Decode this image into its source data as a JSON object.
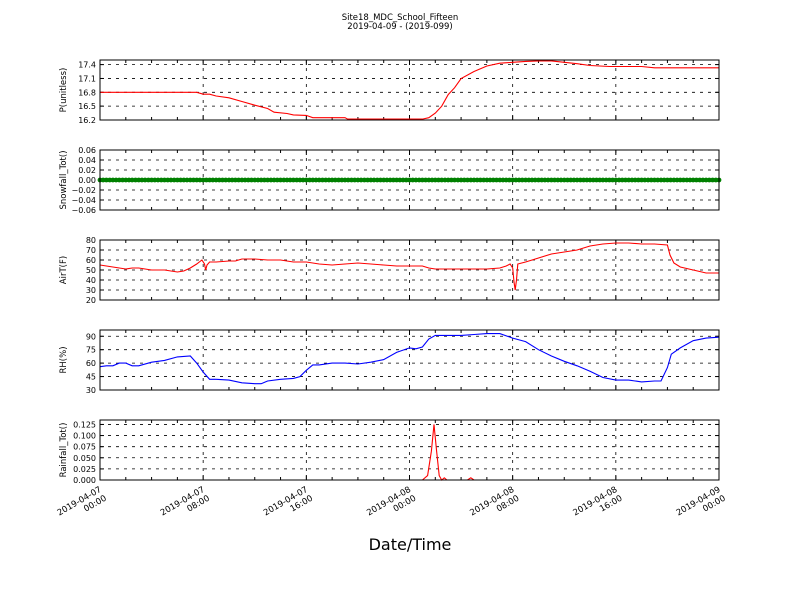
{
  "figure": {
    "title": "Site18_MDC_School_Fifteen",
    "subtitle": "2019-04-09 - (2019-099)",
    "xlabel": "Date/Time",
    "x_ticks": [
      {
        "t": 0,
        "line1": "2019-04-07",
        "line2": "00:00"
      },
      {
        "t": 8,
        "line1": "2019-04-07",
        "line2": "08:00"
      },
      {
        "t": 16,
        "line1": "2019-04-07",
        "line2": "16:00"
      },
      {
        "t": 24,
        "line1": "2019-04-08",
        "line2": "00:00"
      },
      {
        "t": 32,
        "line1": "2019-04-08",
        "line2": "08:00"
      },
      {
        "t": 40,
        "line1": "2019-04-08",
        "line2": "16:00"
      },
      {
        "t": 48,
        "line1": "2019-04-09",
        "line2": "00:00"
      }
    ]
  },
  "chart_data": [
    {
      "type": "line",
      "ylabel": "P(unitless)",
      "ylim": [
        16.2,
        17.5
      ],
      "yticks": [
        16.2,
        16.5,
        16.8,
        17.1,
        17.4
      ],
      "tick_labels": [
        "16.2",
        "16.5",
        "16.8",
        "17.1",
        "17.4"
      ],
      "grid": true,
      "color": "#ff0000",
      "x_start": "2019-04-07 00:00",
      "x_end": "2019-04-09 00:00",
      "points": [
        [
          0,
          16.8
        ],
        [
          7.5,
          16.8
        ],
        [
          8,
          16.76
        ],
        [
          8.5,
          16.76
        ],
        [
          9,
          16.72
        ],
        [
          10,
          16.68
        ],
        [
          11,
          16.6
        ],
        [
          12,
          16.52
        ],
        [
          13,
          16.45
        ],
        [
          13.5,
          16.37
        ],
        [
          14.5,
          16.34
        ],
        [
          15,
          16.31
        ],
        [
          16,
          16.3
        ],
        [
          16.5,
          16.25
        ],
        [
          19,
          16.25
        ],
        [
          19.2,
          16.22
        ],
        [
          25,
          16.22
        ],
        [
          25.5,
          16.25
        ],
        [
          26,
          16.35
        ],
        [
          26.5,
          16.5
        ],
        [
          27,
          16.75
        ],
        [
          27.5,
          16.9
        ],
        [
          28,
          17.1
        ],
        [
          29,
          17.25
        ],
        [
          30,
          17.37
        ],
        [
          31,
          17.43
        ],
        [
          32,
          17.45
        ],
        [
          33,
          17.47
        ],
        [
          34,
          17.48
        ],
        [
          35,
          17.48
        ],
        [
          36,
          17.45
        ],
        [
          37,
          17.42
        ],
        [
          38,
          17.38
        ],
        [
          39.5,
          17.36
        ],
        [
          40,
          17.36
        ],
        [
          42,
          17.36
        ],
        [
          43,
          17.33
        ],
        [
          48,
          17.33
        ]
      ]
    },
    {
      "type": "scatter",
      "ylabel": "Snowfall_Tot()",
      "ylim": [
        -0.06,
        0.06
      ],
      "yticks": [
        -0.06,
        -0.04,
        -0.02,
        0.0,
        0.02,
        0.04,
        0.06
      ],
      "tick_labels": [
        "−0.06",
        "−0.04",
        "−0.02",
        "0.00",
        "0.02",
        "0.04",
        "0.06"
      ],
      "grid": true,
      "color": "#008000",
      "x_start": "2019-04-07 00:00",
      "x_end": "2019-04-09 00:00",
      "constant_value": 0.0,
      "interval_hours": 0.25
    },
    {
      "type": "line",
      "ylabel": "AirT(F)",
      "ylim": [
        20,
        80
      ],
      "yticks": [
        20,
        30,
        40,
        50,
        60,
        70,
        80
      ],
      "tick_labels": [
        "20",
        "30",
        "40",
        "50",
        "60",
        "70",
        "80"
      ],
      "grid": true,
      "color": "#ff0000",
      "x_start": "2019-04-07 00:00",
      "x_end": "2019-04-09 00:00",
      "points": [
        [
          0,
          55
        ],
        [
          1,
          53
        ],
        [
          2,
          51
        ],
        [
          2.5,
          52
        ],
        [
          3,
          52
        ],
        [
          3.5,
          51
        ],
        [
          4,
          50
        ],
        [
          5,
          50
        ],
        [
          6,
          48
        ],
        [
          6.5,
          49
        ],
        [
          7,
          52
        ],
        [
          7.5,
          56
        ],
        [
          7.9,
          60
        ],
        [
          8.1,
          56
        ],
        [
          8.2,
          50
        ],
        [
          8.3,
          55
        ],
        [
          8.5,
          58
        ],
        [
          9,
          58
        ],
        [
          10,
          59
        ],
        [
          10.5,
          59
        ],
        [
          11,
          61
        ],
        [
          12,
          61
        ],
        [
          13,
          60
        ],
        [
          14,
          60
        ],
        [
          15,
          58
        ],
        [
          16,
          58
        ],
        [
          17,
          56
        ],
        [
          18,
          55
        ],
        [
          19,
          56
        ],
        [
          20,
          57
        ],
        [
          21,
          56
        ],
        [
          22,
          55
        ],
        [
          23,
          54
        ],
        [
          24,
          54
        ],
        [
          25,
          54
        ],
        [
          25.5,
          52
        ],
        [
          26,
          51
        ],
        [
          28,
          51
        ],
        [
          30,
          51
        ],
        [
          31,
          52
        ],
        [
          31.5,
          54
        ],
        [
          31.8,
          56
        ],
        [
          32,
          52
        ],
        [
          32.1,
          38
        ],
        [
          32.2,
          30
        ],
        [
          32.3,
          40
        ],
        [
          32.4,
          56
        ],
        [
          33,
          58
        ],
        [
          34,
          62
        ],
        [
          35,
          66
        ],
        [
          36,
          68
        ],
        [
          37,
          70
        ],
        [
          38,
          74
        ],
        [
          39,
          76
        ],
        [
          40,
          77
        ],
        [
          41,
          77
        ],
        [
          42,
          76
        ],
        [
          43,
          76
        ],
        [
          44,
          75
        ],
        [
          44.2,
          65
        ],
        [
          44.5,
          57
        ],
        [
          45,
          53
        ],
        [
          46,
          50
        ],
        [
          47,
          47
        ],
        [
          48,
          47
        ]
      ]
    },
    {
      "type": "line",
      "ylabel": "RH(%)",
      "ylim": [
        30,
        97
      ],
      "yticks": [
        30,
        45,
        60,
        75,
        90
      ],
      "tick_labels": [
        "30",
        "45",
        "60",
        "75",
        "90"
      ],
      "grid": true,
      "color": "#0000ff",
      "x_start": "2019-04-07 00:00",
      "x_end": "2019-04-09 00:00",
      "points": [
        [
          0,
          56
        ],
        [
          0.5,
          57
        ],
        [
          1,
          57
        ],
        [
          1.5,
          60
        ],
        [
          2,
          60
        ],
        [
          2.5,
          57
        ],
        [
          3,
          57
        ],
        [
          4,
          61
        ],
        [
          5,
          63
        ],
        [
          6,
          67
        ],
        [
          7,
          68
        ],
        [
          7.5,
          60
        ],
        [
          8,
          50
        ],
        [
          8.5,
          42
        ],
        [
          9,
          42
        ],
        [
          10,
          41
        ],
        [
          11,
          38
        ],
        [
          12,
          37
        ],
        [
          12.5,
          37
        ],
        [
          13,
          40
        ],
        [
          14,
          42
        ],
        [
          15,
          43
        ],
        [
          15.5,
          45
        ],
        [
          16,
          52
        ],
        [
          16.5,
          58
        ],
        [
          17,
          58
        ],
        [
          18,
          60
        ],
        [
          19,
          60
        ],
        [
          20,
          59
        ],
        [
          21,
          61
        ],
        [
          22,
          64
        ],
        [
          23,
          72
        ],
        [
          24,
          77
        ],
        [
          24.5,
          76
        ],
        [
          25,
          78
        ],
        [
          25.5,
          87
        ],
        [
          26,
          91
        ],
        [
          27,
          91
        ],
        [
          28,
          91
        ],
        [
          29,
          92
        ],
        [
          30,
          93
        ],
        [
          31,
          93
        ],
        [
          32,
          88
        ],
        [
          33,
          84
        ],
        [
          34,
          75
        ],
        [
          35,
          68
        ],
        [
          36,
          62
        ],
        [
          37,
          57
        ],
        [
          38,
          51
        ],
        [
          39,
          44
        ],
        [
          40,
          41
        ],
        [
          41,
          41
        ],
        [
          42,
          39
        ],
        [
          43,
          40
        ],
        [
          43.5,
          40
        ],
        [
          44,
          55
        ],
        [
          44.3,
          70
        ],
        [
          45,
          77
        ],
        [
          46,
          85
        ],
        [
          47,
          88
        ],
        [
          48,
          89
        ]
      ]
    },
    {
      "type": "line",
      "ylabel": "Rainfall_Tot()",
      "ylim": [
        0,
        0.135
      ],
      "yticks": [
        0.0,
        0.025,
        0.05,
        0.075,
        0.1,
        0.125
      ],
      "tick_labels": [
        "0.000",
        "0.025",
        "0.050",
        "0.075",
        "0.100",
        "0.125"
      ],
      "grid": true,
      "color": "#ff0000",
      "x_start": "2019-04-07 00:00",
      "x_end": "2019-04-09 00:00",
      "points": [
        [
          0,
          0
        ],
        [
          25,
          0
        ],
        [
          25.4,
          0.01
        ],
        [
          25.7,
          0.065
        ],
        [
          25.9,
          0.125
        ],
        [
          26.1,
          0.065
        ],
        [
          26.3,
          0.01
        ],
        [
          26.5,
          0
        ],
        [
          26.7,
          0.005
        ],
        [
          26.9,
          0
        ],
        [
          28.5,
          0
        ],
        [
          28.75,
          0.005
        ],
        [
          29,
          0
        ],
        [
          48,
          0
        ]
      ]
    }
  ]
}
